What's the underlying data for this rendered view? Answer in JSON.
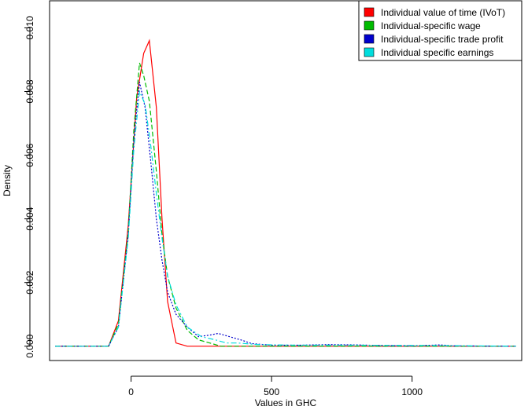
{
  "chart_data": {
    "type": "line",
    "title": "",
    "xlabel": "Values in GHC",
    "ylabel": "Density",
    "xlim": [
      -290,
      1390
    ],
    "ylim": [
      -0.00045,
      0.01085
    ],
    "xticks": [
      0,
      500,
      1000
    ],
    "yticks": [
      0.0,
      0.002,
      0.004,
      0.006,
      0.008,
      0.01
    ],
    "ytick_labels": [
      "0.000",
      "0.002",
      "0.004",
      "0.006",
      "0.008",
      "0.010"
    ],
    "legend_position": "top-right",
    "grid": false,
    "series": [
      {
        "name": "Individual value of time (IVoT)",
        "color": "#ff0000",
        "dash": "solid",
        "x": [
          -270,
          -80,
          -45,
          -10,
          20,
          45,
          65,
          90,
          110,
          130,
          160,
          200,
          300,
          500,
          1370
        ],
        "y": [
          0,
          0,
          0.0008,
          0.0038,
          0.0078,
          0.0092,
          0.0096,
          0.0075,
          0.004,
          0.0014,
          0.0001,
          0,
          0,
          0,
          0
        ]
      },
      {
        "name": "Individual-specific wage",
        "color": "#00bb00",
        "dash": "dashed",
        "x": [
          -270,
          -80,
          -45,
          -10,
          10,
          30,
          45,
          65,
          90,
          110,
          130,
          160,
          200,
          240,
          280,
          320,
          400,
          600,
          1370
        ],
        "y": [
          0,
          0,
          0.0007,
          0.0036,
          0.0068,
          0.0089,
          0.0085,
          0.0077,
          0.0055,
          0.0035,
          0.0022,
          0.0012,
          0.0005,
          0.0002,
          0.0001,
          0,
          0,
          0,
          0
        ]
      },
      {
        "name": "Individual-specific trade profit",
        "color": "#0000cc",
        "dash": "dotted",
        "x": [
          -270,
          -80,
          -45,
          -10,
          10,
          30,
          50,
          70,
          90,
          110,
          130,
          160,
          200,
          240,
          280,
          310,
          350,
          390,
          430,
          500,
          600,
          700,
          800,
          900,
          1000,
          1100,
          1150,
          1370
        ],
        "y": [
          0,
          0,
          0.0006,
          0.0035,
          0.0065,
          0.0083,
          0.0075,
          0.0058,
          0.004,
          0.0027,
          0.0017,
          0.001,
          0.0006,
          0.0003,
          0.00035,
          0.0004,
          0.0003,
          0.0002,
          8e-05,
          3e-05,
          3e-05,
          5e-05,
          4e-05,
          2e-05,
          1e-05,
          4e-05,
          1e-05,
          0
        ]
      },
      {
        "name": "Individual specific earnings",
        "color": "#00dddd",
        "dash": "dashdot",
        "x": [
          -270,
          -80,
          -45,
          -10,
          10,
          30,
          50,
          70,
          90,
          110,
          130,
          160,
          200,
          250,
          300,
          340,
          380,
          450,
          600,
          800,
          1100,
          1370
        ],
        "y": [
          0,
          0,
          0.0006,
          0.0034,
          0.0062,
          0.008,
          0.0076,
          0.0063,
          0.0048,
          0.0034,
          0.0022,
          0.0013,
          0.0006,
          0.0003,
          0.0002,
          0.0001,
          0.0001,
          5e-05,
          3e-05,
          3e-05,
          2e-05,
          0
        ]
      }
    ]
  }
}
